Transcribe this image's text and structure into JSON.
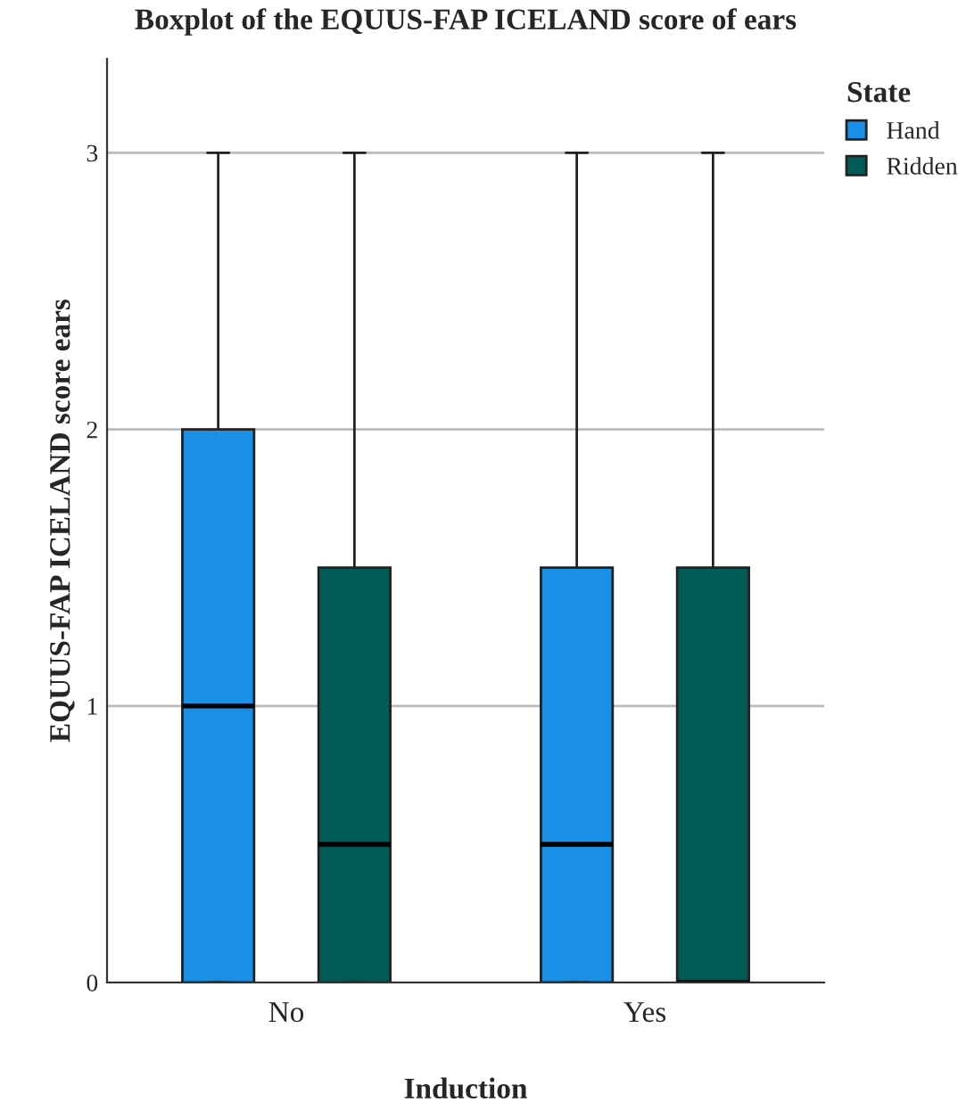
{
  "chart_data": {
    "type": "box",
    "title": "Boxplot of the EQUUS-FAP ICELAND score of ears",
    "xlabel": "Induction",
    "ylabel": "EQUUS-FAP ICELAND score ears",
    "legend_title": "State",
    "legend": "top right",
    "grid": "y",
    "categories": [
      "No",
      "Yes"
    ],
    "ylim": [
      0,
      3.34
    ],
    "yticks": [
      0,
      1,
      2,
      3
    ],
    "series": [
      {
        "name": "Hand",
        "color": "#1a8fe6",
        "boxes": [
          {
            "low": 0,
            "q1": 0,
            "median": 1,
            "q3": 2,
            "high": 3
          },
          {
            "low": 0,
            "q1": 0,
            "median": 0.5,
            "q3": 1.5,
            "high": 3
          }
        ]
      },
      {
        "name": "Ridden",
        "color": "#005a55",
        "boxes": [
          {
            "low": 0,
            "q1": 0,
            "median": 0.5,
            "q3": 1.5,
            "high": 3
          },
          {
            "low": 0,
            "q1": 0,
            "median": 0,
            "q3": 1.5,
            "high": 3
          }
        ]
      }
    ]
  }
}
